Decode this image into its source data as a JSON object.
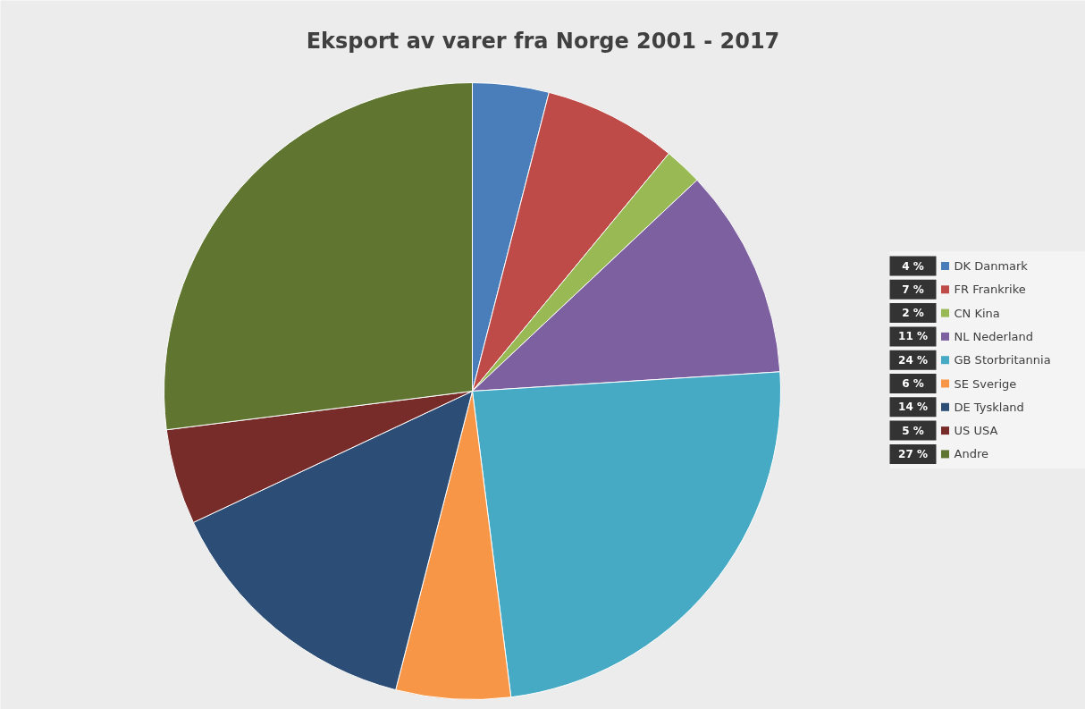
{
  "chart_data": {
    "type": "pie",
    "title": "Eksport av varer fra Norge 2001 - 2017",
    "categories": [
      "DK Danmark",
      "FR Frankrike",
      "CN Kina",
      "NL Nederland",
      "GB Storbritannia",
      "SE Sverige",
      "DE Tyskland",
      "US USA",
      "Andre"
    ],
    "values": [
      4,
      7,
      2,
      11,
      24,
      6,
      14,
      5,
      27
    ],
    "colors": [
      "#4a7ebb",
      "#be4b48",
      "#98b954",
      "#7d60a0",
      "#46aac5",
      "#f79646",
      "#2c4d75",
      "#772c2a",
      "#5f7530"
    ],
    "value_labels": [
      "4 %",
      "7 %",
      "2 %",
      "11 %",
      "24 %",
      "6 %",
      "14 %",
      "5 %",
      "27 %"
    ],
    "legend": "right"
  }
}
